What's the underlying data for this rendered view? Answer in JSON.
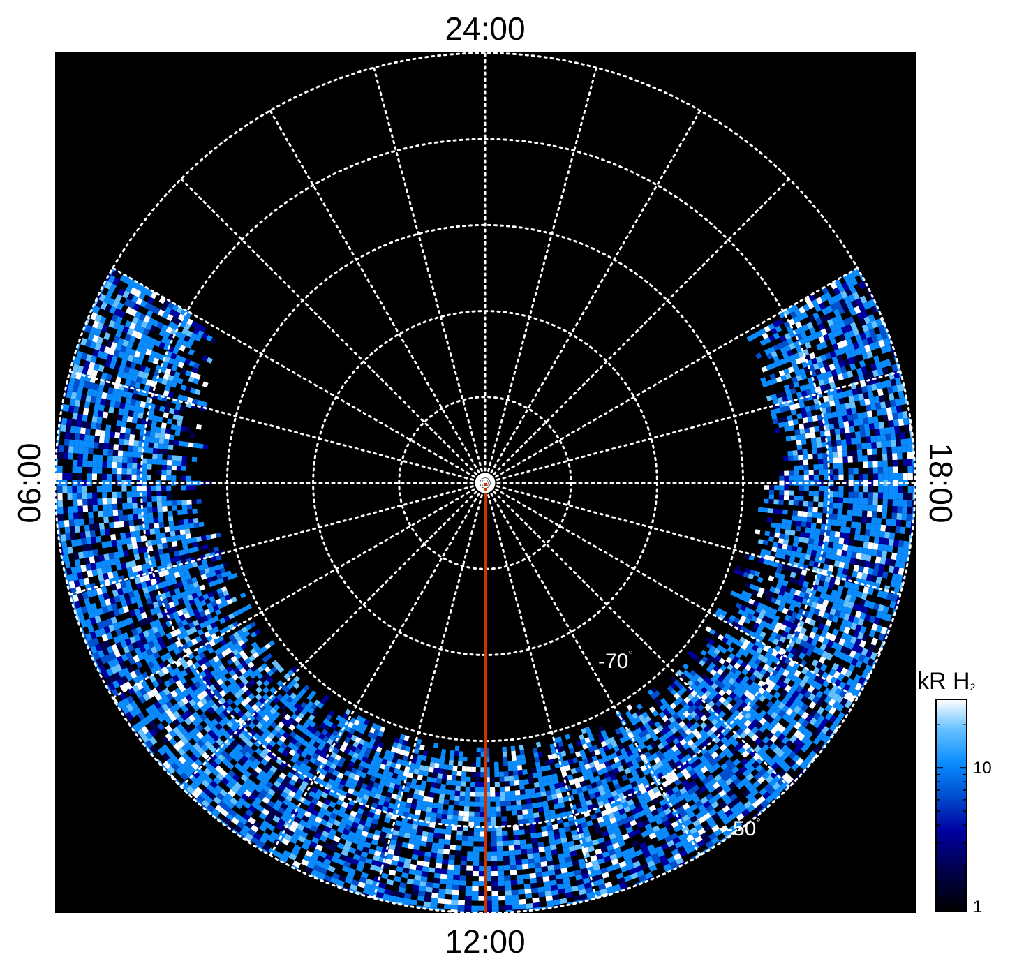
{
  "chart_data": {
    "type": "heatmap",
    "projection": "polar",
    "local_time_labels": {
      "top": "24:00",
      "bottom": "12:00",
      "left": "06:00",
      "right": "18:00"
    },
    "latitude_labels": [
      {
        "value": -70,
        "text": "-70"
      },
      {
        "value": -50,
        "text": "-50"
      }
    ],
    "degree_symbol": "°",
    "latitude_circles": [
      -80,
      -70,
      -60,
      -50,
      -40
    ],
    "meridian_spacing_hours": 1,
    "latitude_range": [
      -90,
      -40
    ],
    "marker_line": {
      "local_time": "12:00",
      "color": "#cc3300"
    },
    "colorbar": {
      "title": "kR H",
      "title_subscript": "2",
      "scale": "log",
      "range": [
        1,
        30
      ],
      "ticks": [
        {
          "value": 1,
          "label": "1"
        },
        {
          "value": 10,
          "label": "10"
        }
      ],
      "colors": [
        "#000000",
        "#00004d",
        "#0000a0",
        "#0050d0",
        "#0a8cff",
        "#66c2ff",
        "#ffffff"
      ]
    },
    "emission_region": {
      "local_time_range": [
        "04:00",
        "20:00"
      ],
      "latitude_range": [
        -56,
        -40
      ]
    }
  }
}
